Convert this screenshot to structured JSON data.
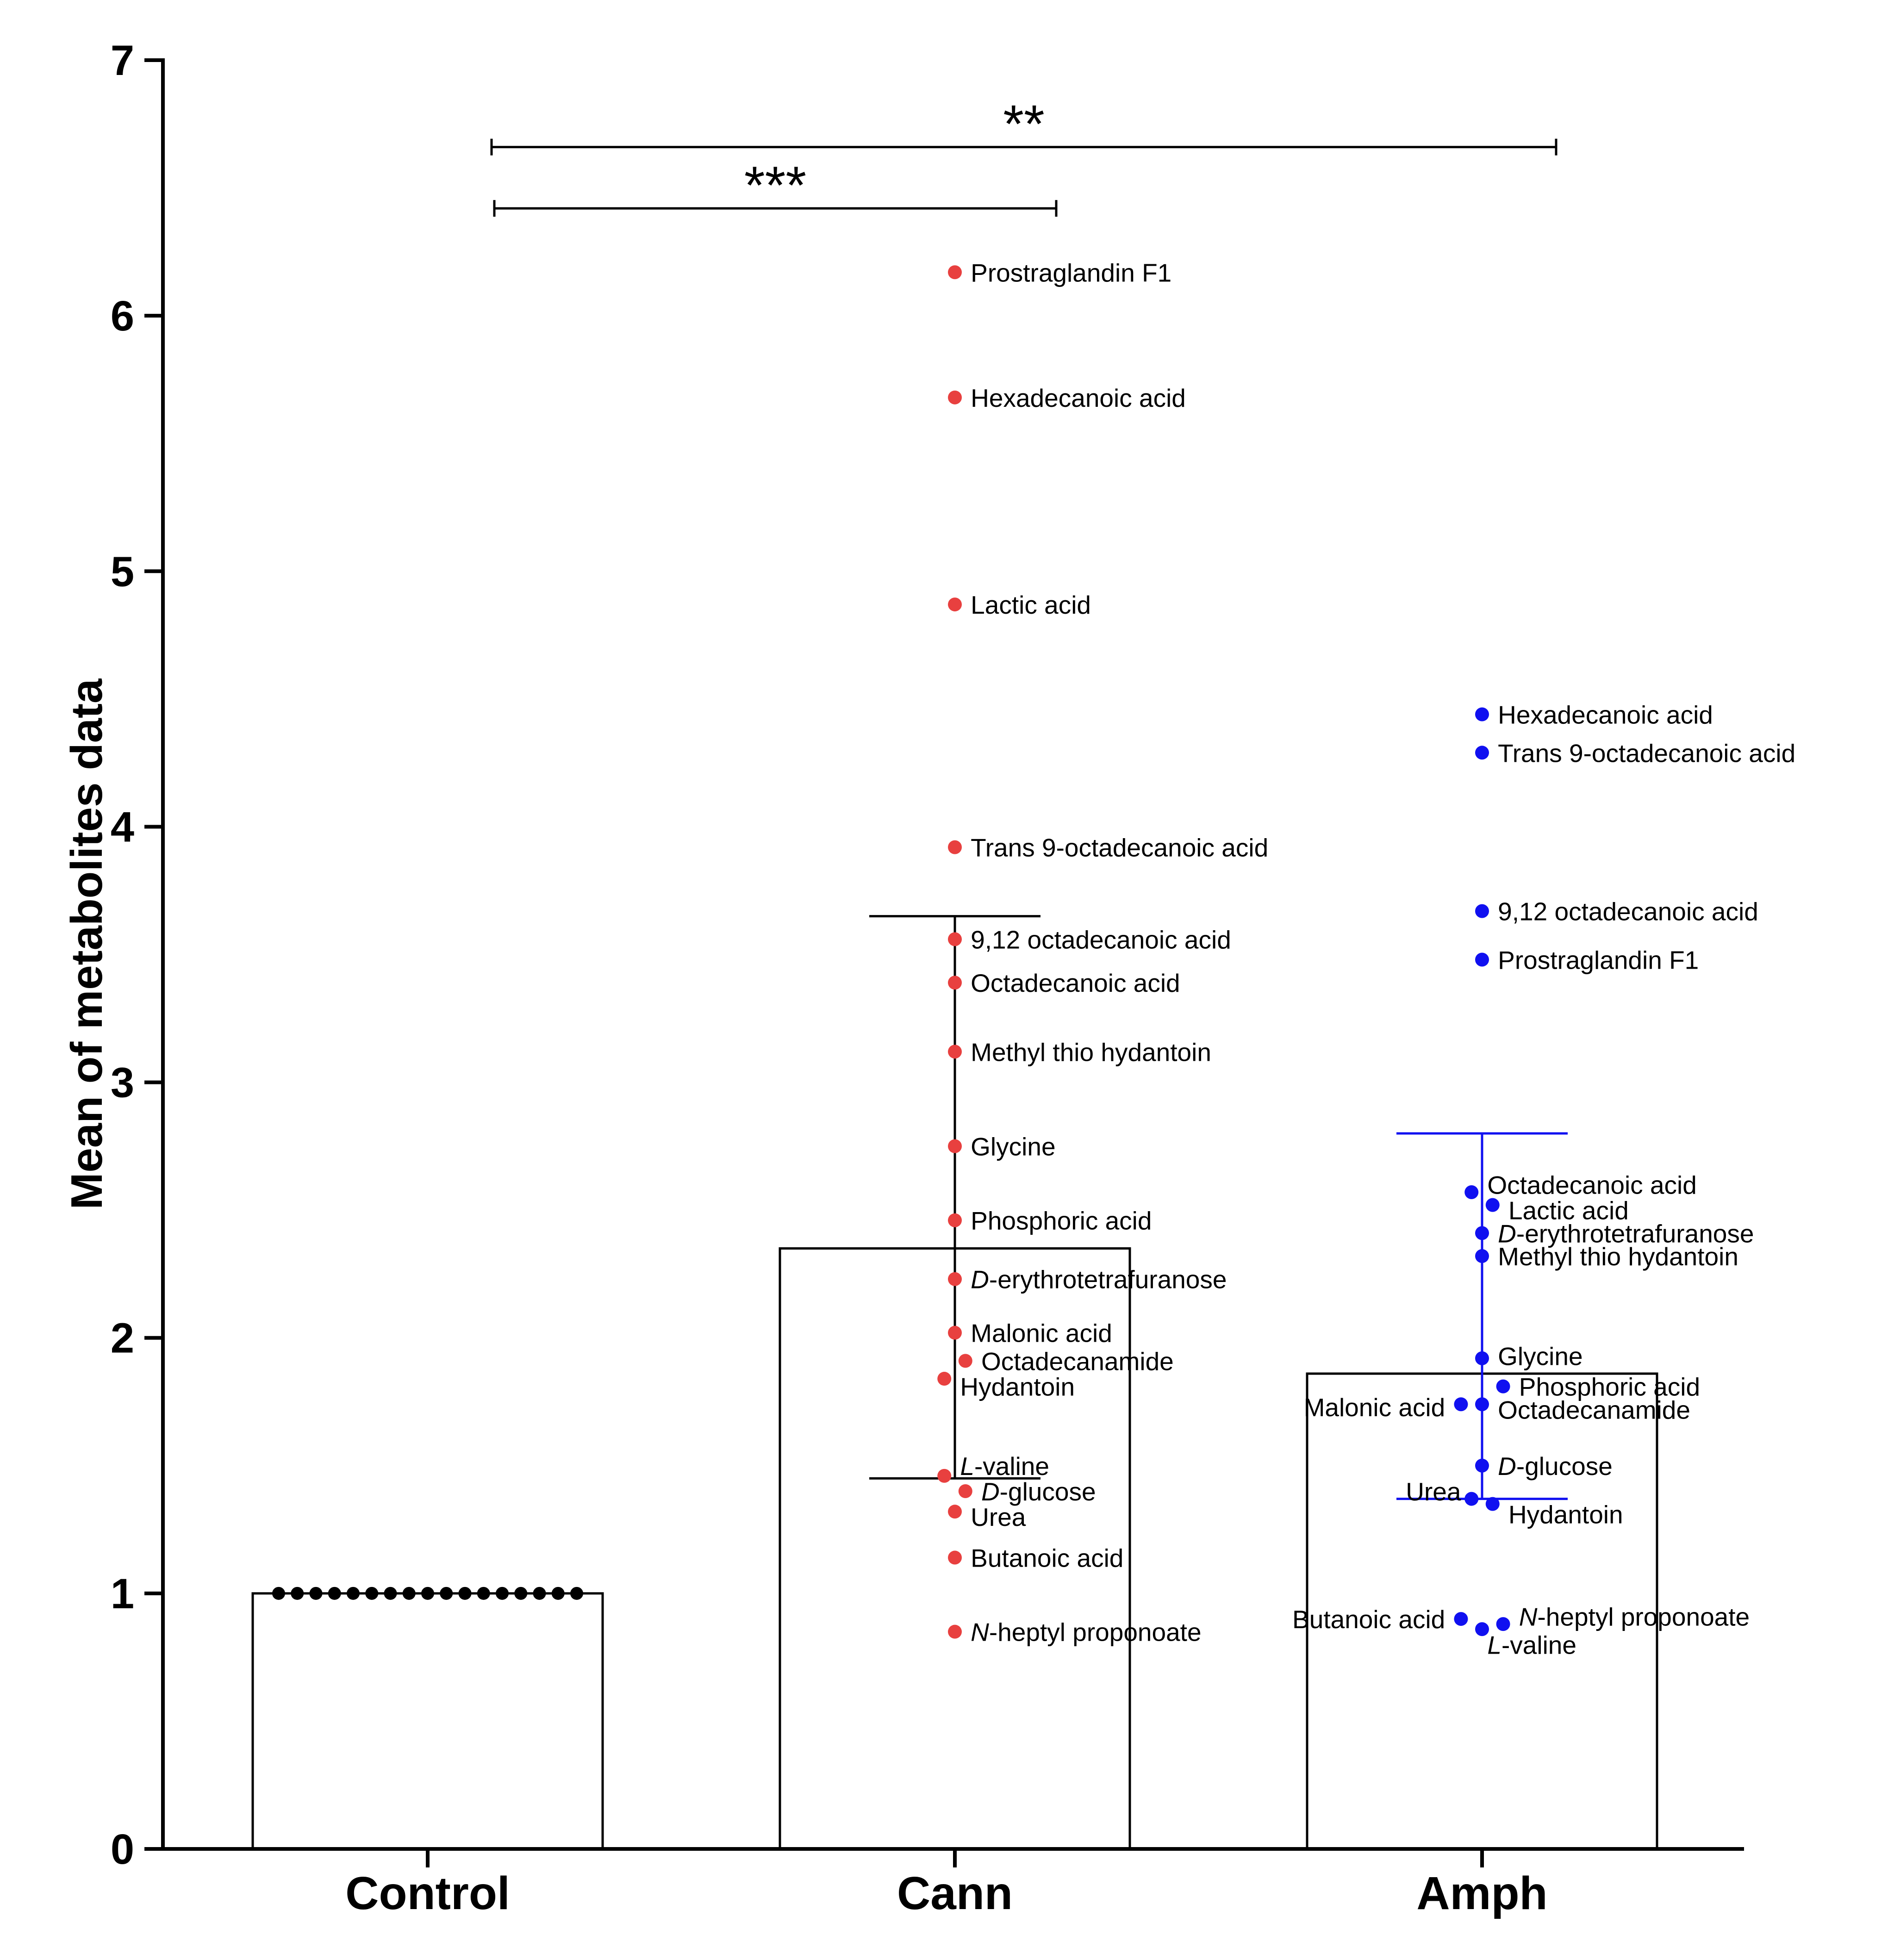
{
  "chart_data": {
    "type": "bar",
    "title": "",
    "xlabel": "",
    "ylabel": "Mean of metabolites data",
    "ylim": [
      0,
      7
    ],
    "yticks": [
      "0",
      "1",
      "2",
      "3",
      "4",
      "5",
      "6",
      "7"
    ],
    "categories": [
      "Control",
      "Cann",
      "Amph"
    ],
    "values": [
      1.0,
      2.35,
      1.86
    ],
    "errors": [
      {
        "category": "Cann",
        "low": 1.45,
        "high": 3.65
      },
      {
        "category": "Amph",
        "low": 1.37,
        "high": 2.8
      }
    ],
    "control_points": {
      "count": 17,
      "value": 1.0
    },
    "colors": {
      "axis": "#000000",
      "cann": "#e8403f",
      "amph": "#1010f0"
    },
    "significance": [
      {
        "from": "Control",
        "to": "Amph",
        "label": "**",
        "y": 6.66
      },
      {
        "from": "Control",
        "to": "Cann",
        "label": "***",
        "y": 6.42
      }
    ],
    "series": [
      {
        "name": "Cann",
        "points": [
          {
            "label": "Prostraglandin F1",
            "value": 6.17,
            "dx": 0,
            "tx": 0.03,
            "ty": 0
          },
          {
            "label": "Hexadecanoic acid",
            "value": 5.68,
            "dx": 0,
            "tx": 0.03,
            "ty": 0
          },
          {
            "label": "Lactic acid",
            "value": 4.87,
            "dx": 0,
            "tx": 0.03,
            "ty": 0
          },
          {
            "label": "Trans 9-octadecanoic acid",
            "value": 3.92,
            "dx": 0,
            "tx": 0.03,
            "ty": 0
          },
          {
            "label": "9,12 octadecanoic acid",
            "value": 3.56,
            "dx": 0,
            "tx": 0.03,
            "ty": 0
          },
          {
            "label": "Octadecanoic acid",
            "value": 3.39,
            "dx": 0,
            "tx": 0.03,
            "ty": 0
          },
          {
            "label": "Methyl thio hydantoin",
            "value": 3.12,
            "dx": 0,
            "tx": 0.03,
            "ty": 0
          },
          {
            "label": "Glycine",
            "value": 2.75,
            "dx": 0,
            "tx": 0.03,
            "ty": 0
          },
          {
            "label": "Phosphoric acid",
            "value": 2.46,
            "dx": 0,
            "tx": 0.03,
            "ty": 0
          },
          {
            "prefix": "D",
            "label": "-erythrotetrafuranose",
            "value": 2.23,
            "dx": 0,
            "tx": 0.03,
            "ty": 0
          },
          {
            "label": "Malonic acid",
            "value": 2.02,
            "dx": 0,
            "tx": 0.03,
            "ty": 0
          },
          {
            "label": "Octadecanamide",
            "value": 1.91,
            "dx": 0.02,
            "tx": 0.05,
            "ty": 0
          },
          {
            "label": "Hydantoin",
            "value": 1.84,
            "dx": -0.02,
            "tx": 0.01,
            "ty": -0.03
          },
          {
            "prefix": "L",
            "label": "-valine",
            "value": 1.46,
            "dx": -0.02,
            "tx": 0.01,
            "ty": 0.04
          },
          {
            "prefix": "D",
            "label": "-glucose",
            "value": 1.4,
            "dx": 0.02,
            "tx": 0.05,
            "ty": 0
          },
          {
            "label": "Urea",
            "value": 1.32,
            "dx": 0,
            "tx": 0.03,
            "ty": -0.02
          },
          {
            "label": "Butanoic acid",
            "value": 1.14,
            "dx": 0,
            "tx": 0.03,
            "ty": 0
          },
          {
            "prefix": "N",
            "label": "-heptyl proponoate",
            "value": 0.85,
            "dx": 0,
            "tx": 0.03,
            "ty": 0
          }
        ]
      },
      {
        "name": "Amph",
        "points": [
          {
            "label": "Hexadecanoic acid",
            "value": 4.44,
            "dx": 0,
            "tx": 0.03,
            "ty": 0
          },
          {
            "label": "Trans 9-octadecanoic acid",
            "value": 4.29,
            "dx": 0,
            "tx": 0.03,
            "ty": 0
          },
          {
            "label": "9,12 octadecanoic acid",
            "value": 3.67,
            "dx": 0,
            "tx": 0.03,
            "ty": 0
          },
          {
            "label": "Prostraglandin F1",
            "value": 3.48,
            "dx": 0,
            "tx": 0.03,
            "ty": 0
          },
          {
            "label": "Octadecanoic acid",
            "value": 2.57,
            "dx": -0.02,
            "tx": 0.01,
            "ty": 0.03
          },
          {
            "label": "Lactic acid",
            "value": 2.52,
            "dx": 0.02,
            "tx": 0.05,
            "ty": -0.02
          },
          {
            "prefix": "D",
            "label": "-erythrotetrafuranose",
            "value": 2.41,
            "dx": 0,
            "tx": 0.03,
            "ty": 0
          },
          {
            "label": "Methyl thio hydantoin",
            "value": 2.32,
            "dx": 0,
            "tx": 0.03,
            "ty": 0
          },
          {
            "label": "Glycine",
            "value": 1.92,
            "dx": 0,
            "tx": 0.03,
            "ty": 0.01
          },
          {
            "label": "Phosphoric acid",
            "value": 1.81,
            "dx": 0.04,
            "tx": 0.07,
            "ty": 0
          },
          {
            "label": "Malonic acid",
            "value": 1.74,
            "dx": -0.04,
            "tx": -0.07,
            "ty": -0.01,
            "anchor": "end"
          },
          {
            "label": "Octadecanamide",
            "value": 1.74,
            "dx": 0,
            "tx": 0.03,
            "ty": -0.02
          },
          {
            "prefix": "D",
            "label": "-glucose",
            "value": 1.5,
            "dx": 0,
            "tx": 0.03,
            "ty": 0
          },
          {
            "label": "Urea",
            "value": 1.37,
            "dx": -0.02,
            "tx": -0.04,
            "ty": 0.03,
            "anchor": "end"
          },
          {
            "label": "Hydantoin",
            "value": 1.35,
            "dx": 0.02,
            "tx": 0.05,
            "ty": -0.04
          },
          {
            "label": "Butanoic acid",
            "value": 0.9,
            "dx": -0.04,
            "tx": -0.07,
            "ty": 0,
            "anchor": "end"
          },
          {
            "prefix": "N",
            "label": "-heptyl proponoate",
            "value": 0.88,
            "dx": 0.04,
            "tx": 0.07,
            "ty": 0.03
          },
          {
            "prefix": "L",
            "label": "-valine",
            "value": 0.86,
            "dx": 0,
            "tx": 0.01,
            "ty": -0.06
          }
        ]
      }
    ]
  }
}
